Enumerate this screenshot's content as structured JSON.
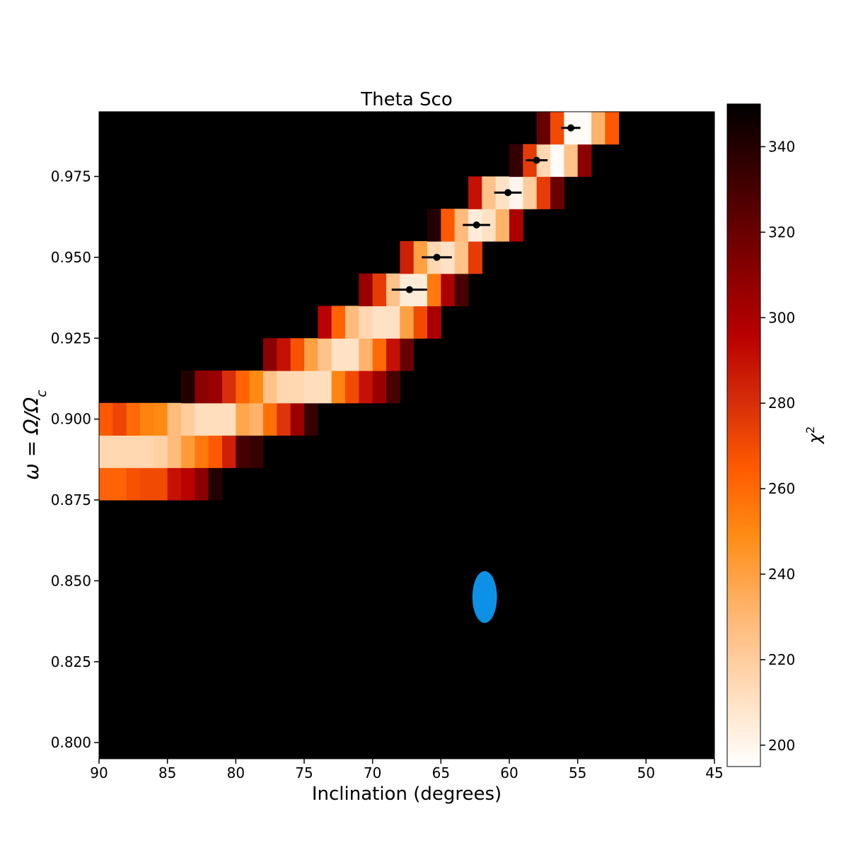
{
  "chart_data": {
    "type": "heatmap",
    "title": "Theta Sco",
    "xlabel": "Inclination (degrees)",
    "ylabel": "ω = Ω/Ω_c",
    "ylabel_parts": {
      "main": "ω = Ω/Ω",
      "sub": "c"
    },
    "colorbar_label_parts": {
      "main": "χ",
      "sup": "2"
    },
    "xlim": [
      90,
      45
    ],
    "ylim": [
      0.795,
      0.995
    ],
    "x_ticks": [
      90,
      85,
      80,
      75,
      70,
      65,
      60,
      55,
      50,
      45
    ],
    "x_tick_labels": [
      "90",
      "85",
      "80",
      "75",
      "70",
      "65",
      "60",
      "55",
      "50",
      "45"
    ],
    "y_ticks": [
      0.8,
      0.825,
      0.85,
      0.875,
      0.9,
      0.925,
      0.95,
      0.975
    ],
    "y_tick_labels": [
      "0.800",
      "0.825",
      "0.850",
      "0.875",
      "0.900",
      "0.925",
      "0.950",
      "0.975"
    ],
    "colorbar": {
      "label": "χ2",
      "colormap": "gist_heat_r",
      "range": [
        195,
        350
      ],
      "ticks": [
        200,
        220,
        240,
        260,
        280,
        300,
        320,
        340
      ],
      "tick_labels": [
        "200",
        "220",
        "240",
        "260",
        "280",
        "300",
        "320",
        "340"
      ]
    },
    "cell_width_deg": 1.0,
    "cell_height": 0.01,
    "background_chi2": 350,
    "rows": [
      {
        "omega": 0.88,
        "x_start": 90,
        "values": [
          262,
          262,
          268,
          270,
          270,
          290,
          295,
          310,
          340
        ]
      },
      {
        "omega": 0.89,
        "x_start": 90,
        "values": [
          215,
          215,
          215,
          215,
          218,
          228,
          242,
          255,
          265,
          285,
          330,
          335
        ]
      },
      {
        "omega": 0.9,
        "x_start": 90,
        "values": [
          265,
          272,
          260,
          252,
          250,
          228,
          220,
          212,
          212,
          212,
          238,
          232,
          258,
          278,
          305,
          335
        ]
      },
      {
        "omega": 0.91,
        "x_start": 84,
        "values": [
          340,
          310,
          305,
          280,
          262,
          250,
          225,
          215,
          215,
          212,
          212,
          252,
          270,
          290,
          305,
          330
        ]
      },
      {
        "omega": 0.92,
        "x_start": 78,
        "values": [
          310,
          290,
          268,
          240,
          225,
          210,
          210,
          232,
          260,
          290,
          320
        ]
      },
      {
        "omega": 0.93,
        "x_start": 74,
        "values": [
          295,
          262,
          228,
          215,
          210,
          210,
          240,
          270,
          300
        ]
      },
      {
        "omega": 0.94,
        "x_start": 71,
        "values": [
          305,
          275,
          225,
          205,
          205,
          255,
          300,
          330
        ]
      },
      {
        "omega": 0.95,
        "x_start": 68,
        "values": [
          285,
          240,
          215,
          210,
          225,
          275
        ]
      },
      {
        "omega": 0.96,
        "x_start": 66,
        "values": [
          340,
          265,
          228,
          205,
          210,
          232,
          300
        ]
      },
      {
        "omega": 0.97,
        "x_start": 63,
        "values": [
          290,
          225,
          210,
          200,
          220,
          275,
          320
        ]
      },
      {
        "omega": 0.98,
        "x_start": 60,
        "values": [
          335,
          275,
          215,
          197,
          225,
          310
        ]
      },
      {
        "omega": 0.99,
        "x_start": 58,
        "values": [
          320,
          270,
          197,
          197,
          232,
          265
        ]
      }
    ],
    "error_points": [
      {
        "x": 67.3,
        "y": 0.94,
        "xerr": 1.3
      },
      {
        "x": 65.3,
        "y": 0.95,
        "xerr": 1.1
      },
      {
        "x": 62.4,
        "y": 0.96,
        "xerr": 1.0
      },
      {
        "x": 60.1,
        "y": 0.97,
        "xerr": 1.0
      },
      {
        "x": 58.0,
        "y": 0.98,
        "xerr": 0.8
      },
      {
        "x": 55.5,
        "y": 0.99,
        "xerr": 0.7
      }
    ],
    "marker": {
      "shape": "ellipse",
      "x": 61.8,
      "y": 0.845,
      "x_half_width": 0.9,
      "y_half_height": 0.008,
      "color": "#0d91e6"
    }
  }
}
